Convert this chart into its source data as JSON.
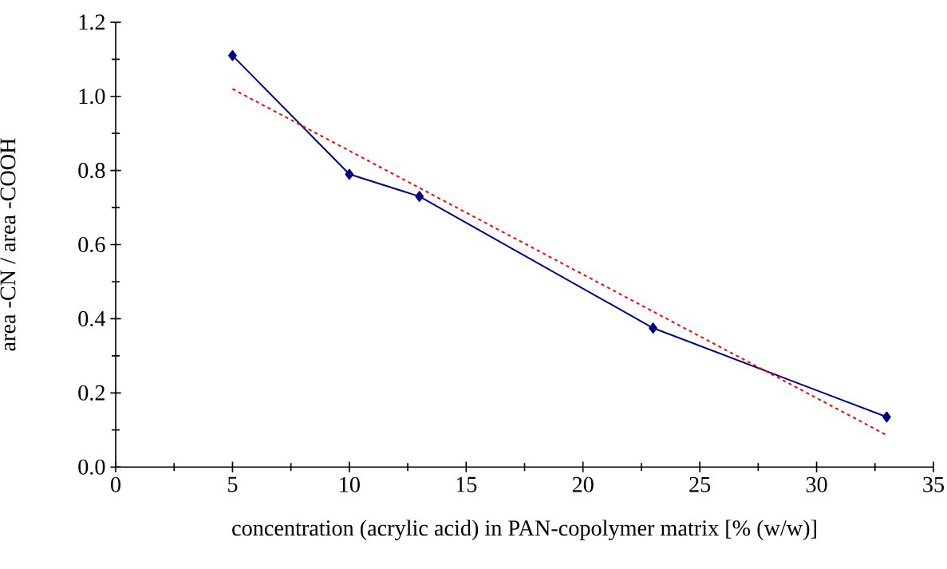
{
  "chart_data": {
    "type": "line",
    "xlabel": "concentration (acrylic acid) in PAN-copolymer matrix [% (w/w)]",
    "ylabel": "area -CN / area -COOH",
    "xlim": [
      0,
      35
    ],
    "ylim": [
      0,
      1.2
    ],
    "xticks": [
      0,
      5,
      10,
      15,
      20,
      25,
      30,
      35
    ],
    "yticks": [
      {
        "value": 0,
        "label": "0.0"
      },
      {
        "value": 0.2,
        "label": "0.2"
      },
      {
        "value": 0.4,
        "label": "0.4"
      },
      {
        "value": 0.6,
        "label": "0.6"
      },
      {
        "value": 0.8,
        "label": "0.8"
      },
      {
        "value": 1.0,
        "label": "1.0"
      },
      {
        "value": 1.2,
        "label": "1.2"
      }
    ],
    "series": [
      {
        "color": "#000080",
        "marker": "diamond",
        "line_style": "solid",
        "x": [
          5,
          10,
          13,
          23,
          33
        ],
        "values": [
          1.11,
          0.79,
          0.73,
          0.375,
          0.135
        ]
      },
      {
        "color": "#ff0000",
        "marker": "none",
        "line_style": "dotted",
        "x": [
          5,
          33
        ],
        "values": [
          1.02,
          0.086
        ]
      }
    ]
  }
}
